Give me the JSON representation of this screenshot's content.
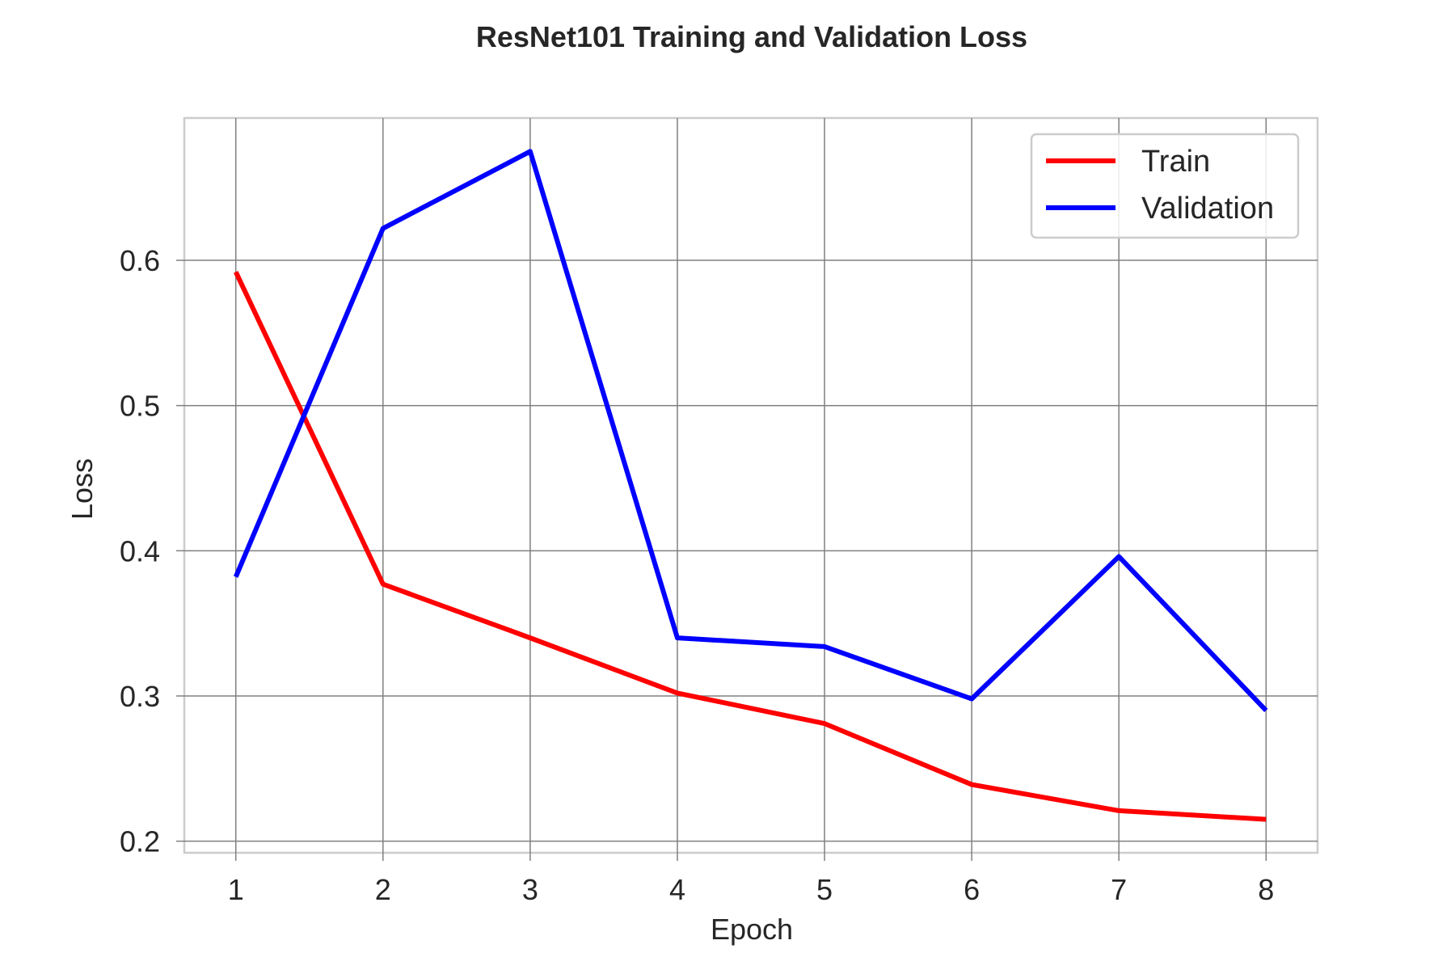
{
  "chart_data": {
    "type": "line",
    "title": "ResNet101 Training and Validation Loss",
    "xlabel": "Epoch",
    "ylabel": "Loss",
    "x": [
      1,
      2,
      3,
      4,
      5,
      6,
      7,
      8
    ],
    "xticks": [
      "1",
      "2",
      "3",
      "4",
      "5",
      "6",
      "7",
      "8"
    ],
    "yticks": [
      "0.2",
      "0.3",
      "0.4",
      "0.5",
      "0.6"
    ],
    "ylim": [
      0.192,
      0.698
    ],
    "xlim": [
      0.65,
      8.35
    ],
    "grid": true,
    "legend_position": "top-right",
    "series": [
      {
        "name": "Train",
        "color": "#ff0000",
        "values": [
          0.592,
          0.377,
          0.34,
          0.302,
          0.281,
          0.239,
          0.221,
          0.215
        ]
      },
      {
        "name": "Validation",
        "color": "#0000ff",
        "values": [
          0.382,
          0.622,
          0.675,
          0.34,
          0.334,
          0.298,
          0.396,
          0.29
        ]
      }
    ]
  }
}
